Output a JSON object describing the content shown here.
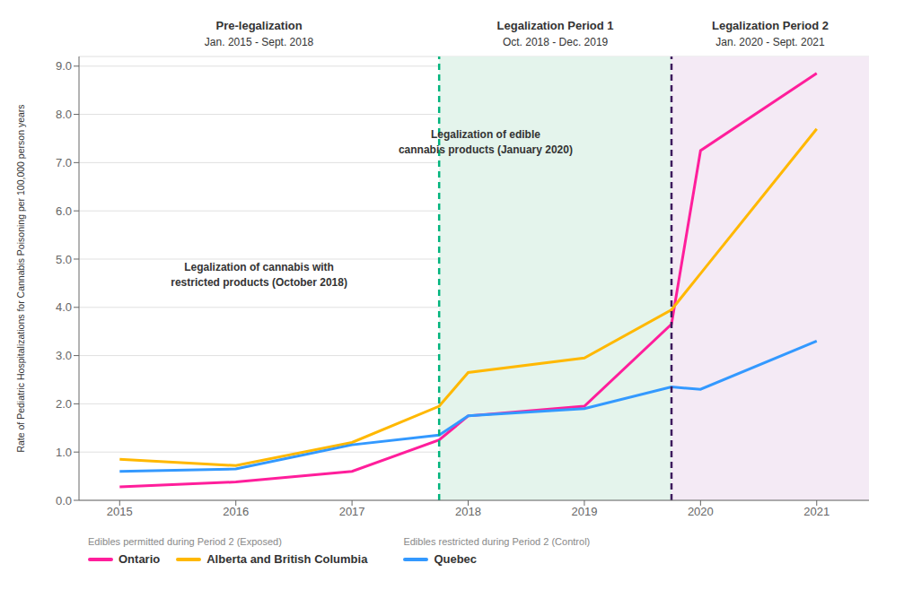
{
  "chart_data": {
    "type": "line",
    "x": [
      2015,
      2016,
      2017,
      2017.75,
      2018,
      2019,
      2019.75,
      2020,
      2021
    ],
    "series": [
      {
        "name": "Ontario",
        "color": "#FF1E9B",
        "values": [
          0.28,
          0.38,
          0.6,
          1.25,
          1.75,
          1.95,
          3.65,
          7.25,
          8.85
        ],
        "group": "Edibles permitted during Period 2 (Exposed)"
      },
      {
        "name": "Alberta and British Columbia",
        "color": "#FFB800",
        "values": [
          0.85,
          0.72,
          1.2,
          1.95,
          2.65,
          2.95,
          3.95,
          4.7,
          7.7
        ],
        "group": "Edibles permitted during Period 2 (Exposed)"
      },
      {
        "name": "Quebec",
        "color": "#3399FF",
        "values": [
          0.6,
          0.65,
          1.15,
          1.35,
          1.75,
          1.9,
          2.35,
          2.3,
          3.3
        ],
        "group": "Edibles restricted during Period 2 (Control)"
      }
    ],
    "xlim": [
      2014.65,
      2021.45
    ],
    "xticks": [
      2015,
      2016,
      2017,
      2018,
      2019,
      2020,
      2021
    ],
    "ylim": [
      0,
      9.2
    ],
    "yticks": [
      {
        "value": 0,
        "label": "0.0"
      },
      {
        "value": 1,
        "label": "1.0"
      },
      {
        "value": 2,
        "label": "2.0"
      },
      {
        "value": 3,
        "label": "3.0"
      },
      {
        "value": 4,
        "label": "4.0"
      },
      {
        "value": 5,
        "label": "5.0"
      },
      {
        "value": 6,
        "label": "6.0"
      },
      {
        "value": 7,
        "label": "7.0"
      },
      {
        "value": 8,
        "label": "8.0"
      },
      {
        "value": 9,
        "label": "9.0"
      }
    ],
    "ylabel": "Rate of Pediatric Hospitalizations for Cannabis Poisoning per 100,000 person years",
    "grid": "y",
    "legend": "bottom",
    "periods": [
      {
        "title": "Pre-legalization",
        "dates": "Jan. 2015 - Sept. 2018",
        "start": 2014.65,
        "end": 2017.75
      },
      {
        "title": "Legalization Period 1",
        "dates": "Oct. 2018 - Dec. 2019",
        "start": 2017.75,
        "end": 2019.75,
        "color": "#E4F4EC"
      },
      {
        "title": "Legalization Period 2",
        "dates": "Jan. 2020 - Sept. 2021",
        "start": 2019.75,
        "end": 2021.45,
        "color": "#F4EAF5"
      }
    ],
    "vlines": [
      {
        "x": 2017.75,
        "color": "#00B47D",
        "line_style": "dashed"
      },
      {
        "x": 2019.75,
        "color": "#3D1A5E",
        "line_style": "dashed"
      }
    ],
    "annotations": [
      {
        "text": "Legalization of cannabis with\nrestricted products (October 2018)",
        "x": 2016.2,
        "y": 4.65
      },
      {
        "text": "Legalization of edible\ncannabis products (January 2020)",
        "x": 2018.15,
        "y": 7.4
      }
    ]
  }
}
